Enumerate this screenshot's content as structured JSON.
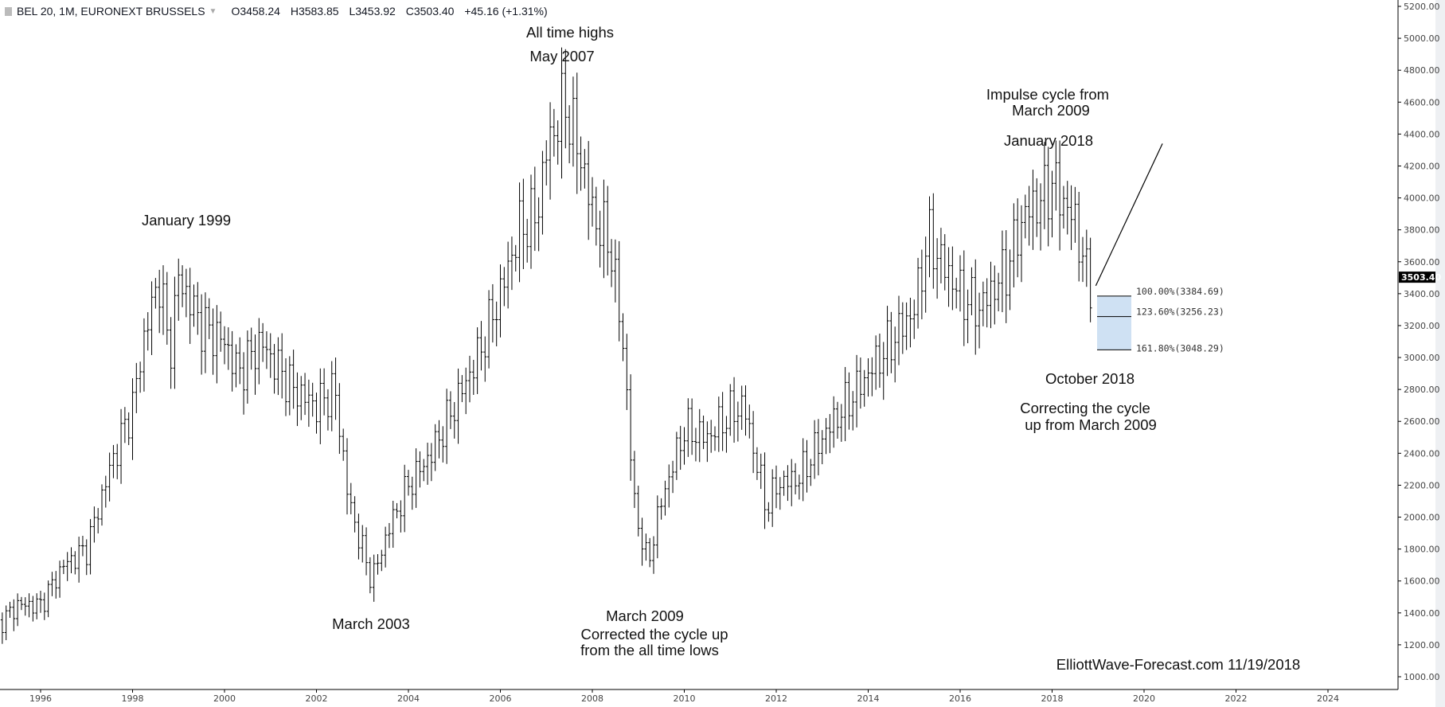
{
  "header": {
    "symbol": "BEL 20, 1M, EURONEXT BRUSSELS",
    "open": "O3458.24",
    "high": "H3583.85",
    "low": "L3453.92",
    "close": "C3503.40",
    "change": "+45.16 (+1.31%)"
  },
  "annotations": {
    "ath": "All time highs",
    "may2007": "May 2007",
    "jan1999": "January 1999",
    "mar2003": "March 2003",
    "mar2009": "March 2009",
    "corrected1": "Corrected the cycle up",
    "corrected2": "from the all time lows",
    "impulse1": "Impulse cycle from",
    "impulse2": "March 2009",
    "jan2018": "January 2018",
    "oct2018": "October 2018",
    "correcting1": "Correcting the cycle",
    "correcting2": "up from March 2009",
    "watermark": "ElliottWave-Forecast.com 11/19/2018"
  },
  "chart_data": {
    "type": "ohlc",
    "interval": "1M",
    "colors": {
      "bars": "#000000",
      "fib_fill": "#cfe1f3",
      "price_tag": "#000000"
    },
    "ylim": [
      1000,
      5200
    ],
    "y_ticks": [
      "1000.00",
      "1200.00",
      "1400.00",
      "1600.00",
      "1800.00",
      "2000.00",
      "2200.00",
      "2400.00",
      "2600.00",
      "2800.00",
      "3000.00",
      "3200.00",
      "3400.00",
      "3600.00",
      "3800.00",
      "4000.00",
      "4200.00",
      "4400.00",
      "4600.00",
      "4800.00",
      "5000.00",
      "5200.00"
    ],
    "x_ticks": [
      "1996",
      "1998",
      "2000",
      "2002",
      "2004",
      "2006",
      "2008",
      "2010",
      "2012",
      "2014",
      "2016",
      "2018",
      "2020",
      "2022",
      "2024"
    ],
    "last_price": "3503.40",
    "approx_close_path": [
      [
        1995.0,
        1300
      ],
      [
        1995.5,
        1450
      ],
      [
        1996.0,
        1450
      ],
      [
        1996.5,
        1700
      ],
      [
        1997.0,
        1800
      ],
      [
        1997.5,
        2300
      ],
      [
        1998.0,
        2700
      ],
      [
        1998.3,
        3200
      ],
      [
        1998.6,
        3500
      ],
      [
        1998.8,
        3000
      ],
      [
        1999.0,
        3500
      ],
      [
        1999.5,
        3200
      ],
      [
        2000.0,
        3100
      ],
      [
        2000.3,
        2900
      ],
      [
        2000.8,
        3100
      ],
      [
        2001.0,
        3000
      ],
      [
        2001.5,
        2800
      ],
      [
        2002.0,
        2700
      ],
      [
        2002.4,
        2800
      ],
      [
        2002.7,
        2100
      ],
      [
        2003.2,
        1600
      ],
      [
        2003.6,
        1950
      ],
      [
        2004.0,
        2200
      ],
      [
        2004.5,
        2400
      ],
      [
        2005.0,
        2700
      ],
      [
        2005.5,
        3000
      ],
      [
        2006.0,
        3400
      ],
      [
        2006.4,
        3800
      ],
      [
        2006.8,
        3900
      ],
      [
        2007.0,
        4300
      ],
      [
        2007.4,
        4600
      ],
      [
        2007.8,
        4200
      ],
      [
        2008.0,
        3900
      ],
      [
        2008.4,
        3700
      ],
      [
        2008.7,
        3000
      ],
      [
        2008.9,
        2100
      ],
      [
        2009.2,
        1700
      ],
      [
        2009.5,
        2100
      ],
      [
        2010.0,
        2550
      ],
      [
        2010.5,
        2500
      ],
      [
        2011.0,
        2650
      ],
      [
        2011.3,
        2700
      ],
      [
        2011.6,
        2300
      ],
      [
        2011.8,
        2050
      ],
      [
        2012.0,
        2200
      ],
      [
        2012.5,
        2250
      ],
      [
        2013.0,
        2500
      ],
      [
        2013.5,
        2700
      ],
      [
        2014.0,
        2900
      ],
      [
        2014.5,
        3100
      ],
      [
        2015.0,
        3300
      ],
      [
        2015.3,
        3750
      ],
      [
        2015.6,
        3600
      ],
      [
        2016.0,
        3400
      ],
      [
        2016.4,
        3300
      ],
      [
        2017.0,
        3550
      ],
      [
        2017.4,
        3900
      ],
      [
        2017.8,
        4000
      ],
      [
        2018.0,
        4100
      ],
      [
        2018.5,
        3850
      ],
      [
        2018.8,
        3450
      ],
      [
        2018.87,
        3503.4
      ]
    ],
    "fibonacci": [
      {
        "label": "100.00%(3384.69)",
        "value": 3384.69
      },
      {
        "label": "123.60%(3256.23)",
        "value": 3256.23
      },
      {
        "label": "161.80%(3048.29)",
        "value": 3048.29
      }
    ],
    "projection_line": {
      "from": [
        2018.95,
        3450
      ],
      "to": [
        2020.4,
        4340
      ]
    }
  }
}
